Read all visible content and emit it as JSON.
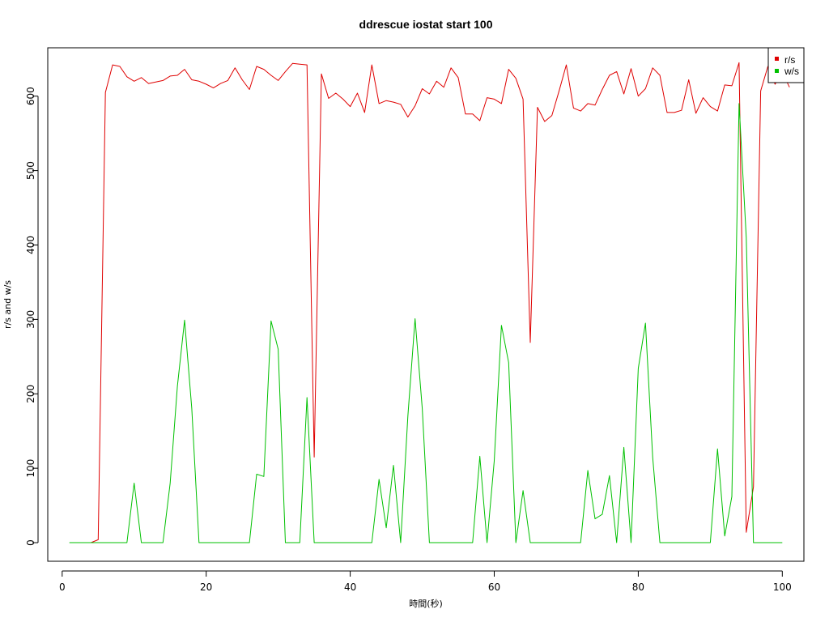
{
  "chart_data": {
    "type": "line",
    "title": "ddrescue iostat start 100",
    "xlabel": "時間(秒)",
    "ylabel": "r/s and w/s",
    "xlim": [
      -2,
      103
    ],
    "ylim": [
      -25,
      665
    ],
    "xticks": [
      0,
      20,
      40,
      60,
      80,
      100
    ],
    "yticks": [
      0,
      100,
      200,
      300,
      400,
      500,
      600
    ],
    "grid": false,
    "legend_position": "top-right",
    "series": [
      {
        "name": "r/s",
        "color": "#DF0000",
        "x": [
          2,
          3,
          4,
          5,
          6,
          7,
          8,
          9,
          10,
          11,
          12,
          13,
          14,
          15,
          16,
          17,
          18,
          19,
          20,
          21,
          22,
          23,
          24,
          25,
          26,
          27,
          28,
          29,
          30,
          31,
          32,
          33,
          34,
          35,
          36,
          37,
          38,
          39,
          40,
          41,
          42,
          43,
          44,
          45,
          46,
          47,
          48,
          49,
          50,
          51,
          52,
          53,
          54,
          55,
          56,
          57,
          58,
          59,
          60,
          61,
          62,
          63,
          64,
          65,
          66,
          67,
          68,
          69,
          70,
          71,
          72,
          73,
          74,
          75,
          76,
          77,
          78,
          79,
          80,
          81,
          82,
          83,
          84,
          85,
          86,
          87,
          88,
          89,
          90,
          91,
          92,
          93,
          94,
          95,
          96,
          97,
          98,
          99,
          100,
          101
        ],
        "values": [
          0,
          0,
          0,
          4,
          605,
          642,
          640,
          626,
          620,
          625,
          617,
          619,
          621,
          627,
          628,
          636,
          622,
          620,
          616,
          611,
          617,
          621,
          638,
          622,
          609,
          640,
          636,
          628,
          621,
          633,
          644,
          643,
          642,
          115,
          630,
          597,
          604,
          596,
          586,
          604,
          578,
          642,
          590,
          594,
          592,
          589,
          572,
          587,
          610,
          603,
          620,
          612,
          638,
          625,
          576,
          576,
          567,
          598,
          596,
          590,
          636,
          624,
          596,
          269,
          585,
          566,
          574,
          607,
          642,
          584,
          580,
          590,
          588,
          609,
          628,
          633,
          603,
          637,
          600,
          610,
          638,
          628,
          578,
          578,
          581,
          622,
          577,
          598,
          586,
          580,
          615,
          614,
          645,
          14,
          75,
          607,
          640,
          616,
          632,
          612
        ]
      },
      {
        "name": "w/s",
        "color": "#00C000",
        "x": [
          1,
          2,
          3,
          4,
          5,
          6,
          7,
          8,
          9,
          10,
          11,
          12,
          13,
          14,
          15,
          16,
          17,
          18,
          19,
          20,
          21,
          22,
          23,
          24,
          25,
          26,
          27,
          28,
          29,
          30,
          31,
          32,
          33,
          34,
          35,
          36,
          37,
          38,
          39,
          40,
          41,
          42,
          43,
          44,
          45,
          46,
          47,
          48,
          49,
          50,
          51,
          52,
          53,
          54,
          55,
          56,
          57,
          58,
          59,
          60,
          61,
          62,
          63,
          64,
          65,
          66,
          67,
          68,
          69,
          70,
          71,
          72,
          73,
          74,
          75,
          76,
          77,
          78,
          79,
          80,
          81,
          82,
          83,
          84,
          85,
          86,
          87,
          88,
          89,
          90,
          91,
          92,
          93,
          94,
          95,
          96,
          97,
          98,
          99,
          100
        ],
        "values": [
          0,
          0,
          0,
          0,
          0,
          0,
          0,
          0,
          0,
          80,
          0,
          0,
          0,
          0,
          80,
          210,
          299,
          180,
          0,
          0,
          0,
          0,
          0,
          0,
          0,
          0,
          92,
          89,
          298,
          260,
          0,
          0,
          0,
          195,
          0,
          0,
          0,
          0,
          0,
          0,
          0,
          0,
          0,
          85,
          20,
          104,
          0,
          170,
          301,
          180,
          0,
          0,
          0,
          0,
          0,
          0,
          0,
          116,
          0,
          110,
          292,
          242,
          0,
          70,
          0,
          0,
          0,
          0,
          0,
          0,
          0,
          0,
          97,
          32,
          38,
          90,
          0,
          128,
          0,
          234,
          295,
          115,
          0,
          0,
          0,
          0,
          0,
          0,
          0,
          0,
          126,
          9,
          62,
          590,
          410,
          0,
          0,
          0,
          0,
          0
        ]
      }
    ]
  }
}
